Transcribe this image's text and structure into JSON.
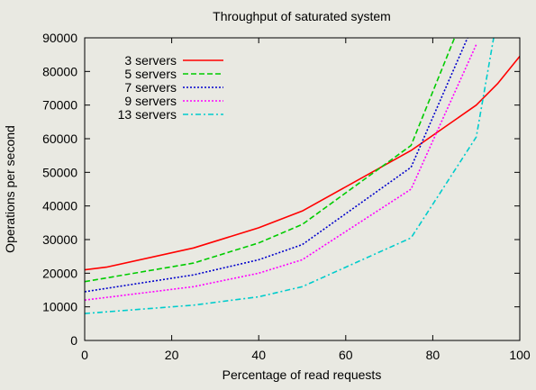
{
  "chart_data": {
    "type": "line",
    "title": "Throughput of saturated system",
    "xlabel": "Percentage of read requests",
    "ylabel": "Operations per second",
    "xlim": [
      0,
      100
    ],
    "ylim": [
      0,
      90000
    ],
    "xticks": [
      0,
      20,
      40,
      60,
      80,
      100
    ],
    "yticks": [
      0,
      10000,
      20000,
      30000,
      40000,
      50000,
      60000,
      70000,
      80000,
      90000
    ],
    "grid": false,
    "legend_position": "top-left",
    "series": [
      {
        "name": "3 servers",
        "color": "#ff0000",
        "dash": "solid",
        "x": [
          0,
          5,
          25,
          40,
          50,
          75,
          90,
          95,
          100
        ],
        "y": [
          21000,
          21800,
          27500,
          33500,
          38500,
          56500,
          70000,
          76500,
          84500
        ]
      },
      {
        "name": "5 servers",
        "color": "#00cc00",
        "dash": "dashed",
        "x": [
          0,
          25,
          40,
          50,
          75,
          85
        ],
        "y": [
          17500,
          23000,
          29000,
          34500,
          58000,
          90000
        ]
      },
      {
        "name": "7 servers",
        "color": "#0000cc",
        "dash": "dotted",
        "x": [
          0,
          25,
          40,
          50,
          75,
          88
        ],
        "y": [
          14500,
          19500,
          24000,
          28500,
          51500,
          90000
        ]
      },
      {
        "name": "9 servers",
        "color": "#ff00ff",
        "dash": "dotted",
        "x": [
          0,
          25,
          40,
          50,
          75,
          90
        ],
        "y": [
          12000,
          16000,
          20000,
          24000,
          45000,
          88000
        ]
      },
      {
        "name": "13 servers",
        "color": "#00cccc",
        "dash": "dashdot",
        "x": [
          0,
          25,
          40,
          50,
          75,
          90,
          94
        ],
        "y": [
          8000,
          10500,
          13000,
          16000,
          30500,
          60500,
          90000
        ]
      }
    ]
  }
}
